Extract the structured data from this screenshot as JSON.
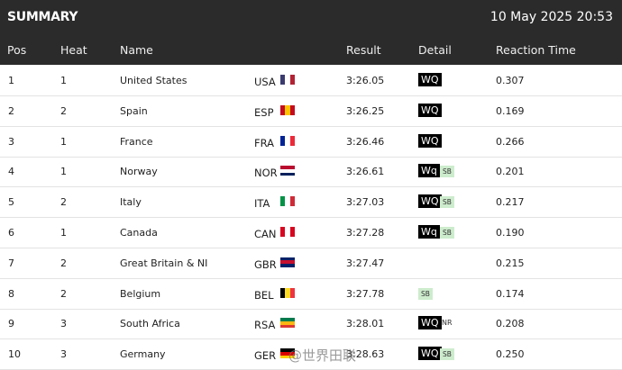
{
  "header": {
    "title": "SUMMARY",
    "datetime": "10 May 2025 20:53"
  },
  "table": {
    "columns": [
      "Pos",
      "Heat",
      "Name",
      "Result",
      "Detail",
      "Reaction Time"
    ],
    "rows": [
      {
        "pos": "1",
        "heat": "1",
        "name": "United States",
        "code": "USA",
        "result": "3:26.05",
        "detail": "WQ",
        "reaction": "0.307"
      },
      {
        "pos": "2",
        "heat": "2",
        "name": "Spain",
        "code": "ESP",
        "result": "3:26.25",
        "detail": "WQ",
        "reaction": "0.169"
      },
      {
        "pos": "3",
        "heat": "1",
        "name": "France",
        "code": "FRA",
        "result": "3:26.46",
        "detail": "WQ",
        "reaction": "0.266"
      },
      {
        "pos": "4",
        "heat": "1",
        "name": "Norway",
        "code": "NOR",
        "result": "3:26.61",
        "detail": "Wq",
        "record": "SB",
        "reaction": "0.201"
      },
      {
        "pos": "5",
        "heat": "2",
        "name": "Italy",
        "code": "ITA",
        "result": "3:27.03",
        "detail": "WQ",
        "record": "SB",
        "reaction": "0.217"
      },
      {
        "pos": "6",
        "heat": "1",
        "name": "Canada",
        "code": "CAN",
        "result": "3:27.28",
        "detail": "Wq",
        "record": "SB",
        "reaction": "0.190"
      },
      {
        "pos": "7",
        "heat": "2",
        "name": "Great Britain & NI",
        "code": "GBR",
        "result": "3:27.47",
        "reaction": "0.215"
      },
      {
        "pos": "8",
        "heat": "2",
        "name": "Belgium",
        "code": "BEL",
        "result": "3:27.78",
        "record": "SB",
        "reaction": "0.174"
      },
      {
        "pos": "9",
        "heat": "3",
        "name": "South Africa",
        "code": "RSA",
        "result": "3:28.01",
        "detail": "WQ",
        "note": "NR",
        "reaction": "0.208"
      },
      {
        "pos": "10",
        "heat": "3",
        "name": "Germany",
        "code": "GER",
        "result": "3:28.63",
        "detail": "WQ",
        "record": "SB",
        "reaction": "0.250"
      }
    ]
  },
  "watermark": "@世界田联"
}
